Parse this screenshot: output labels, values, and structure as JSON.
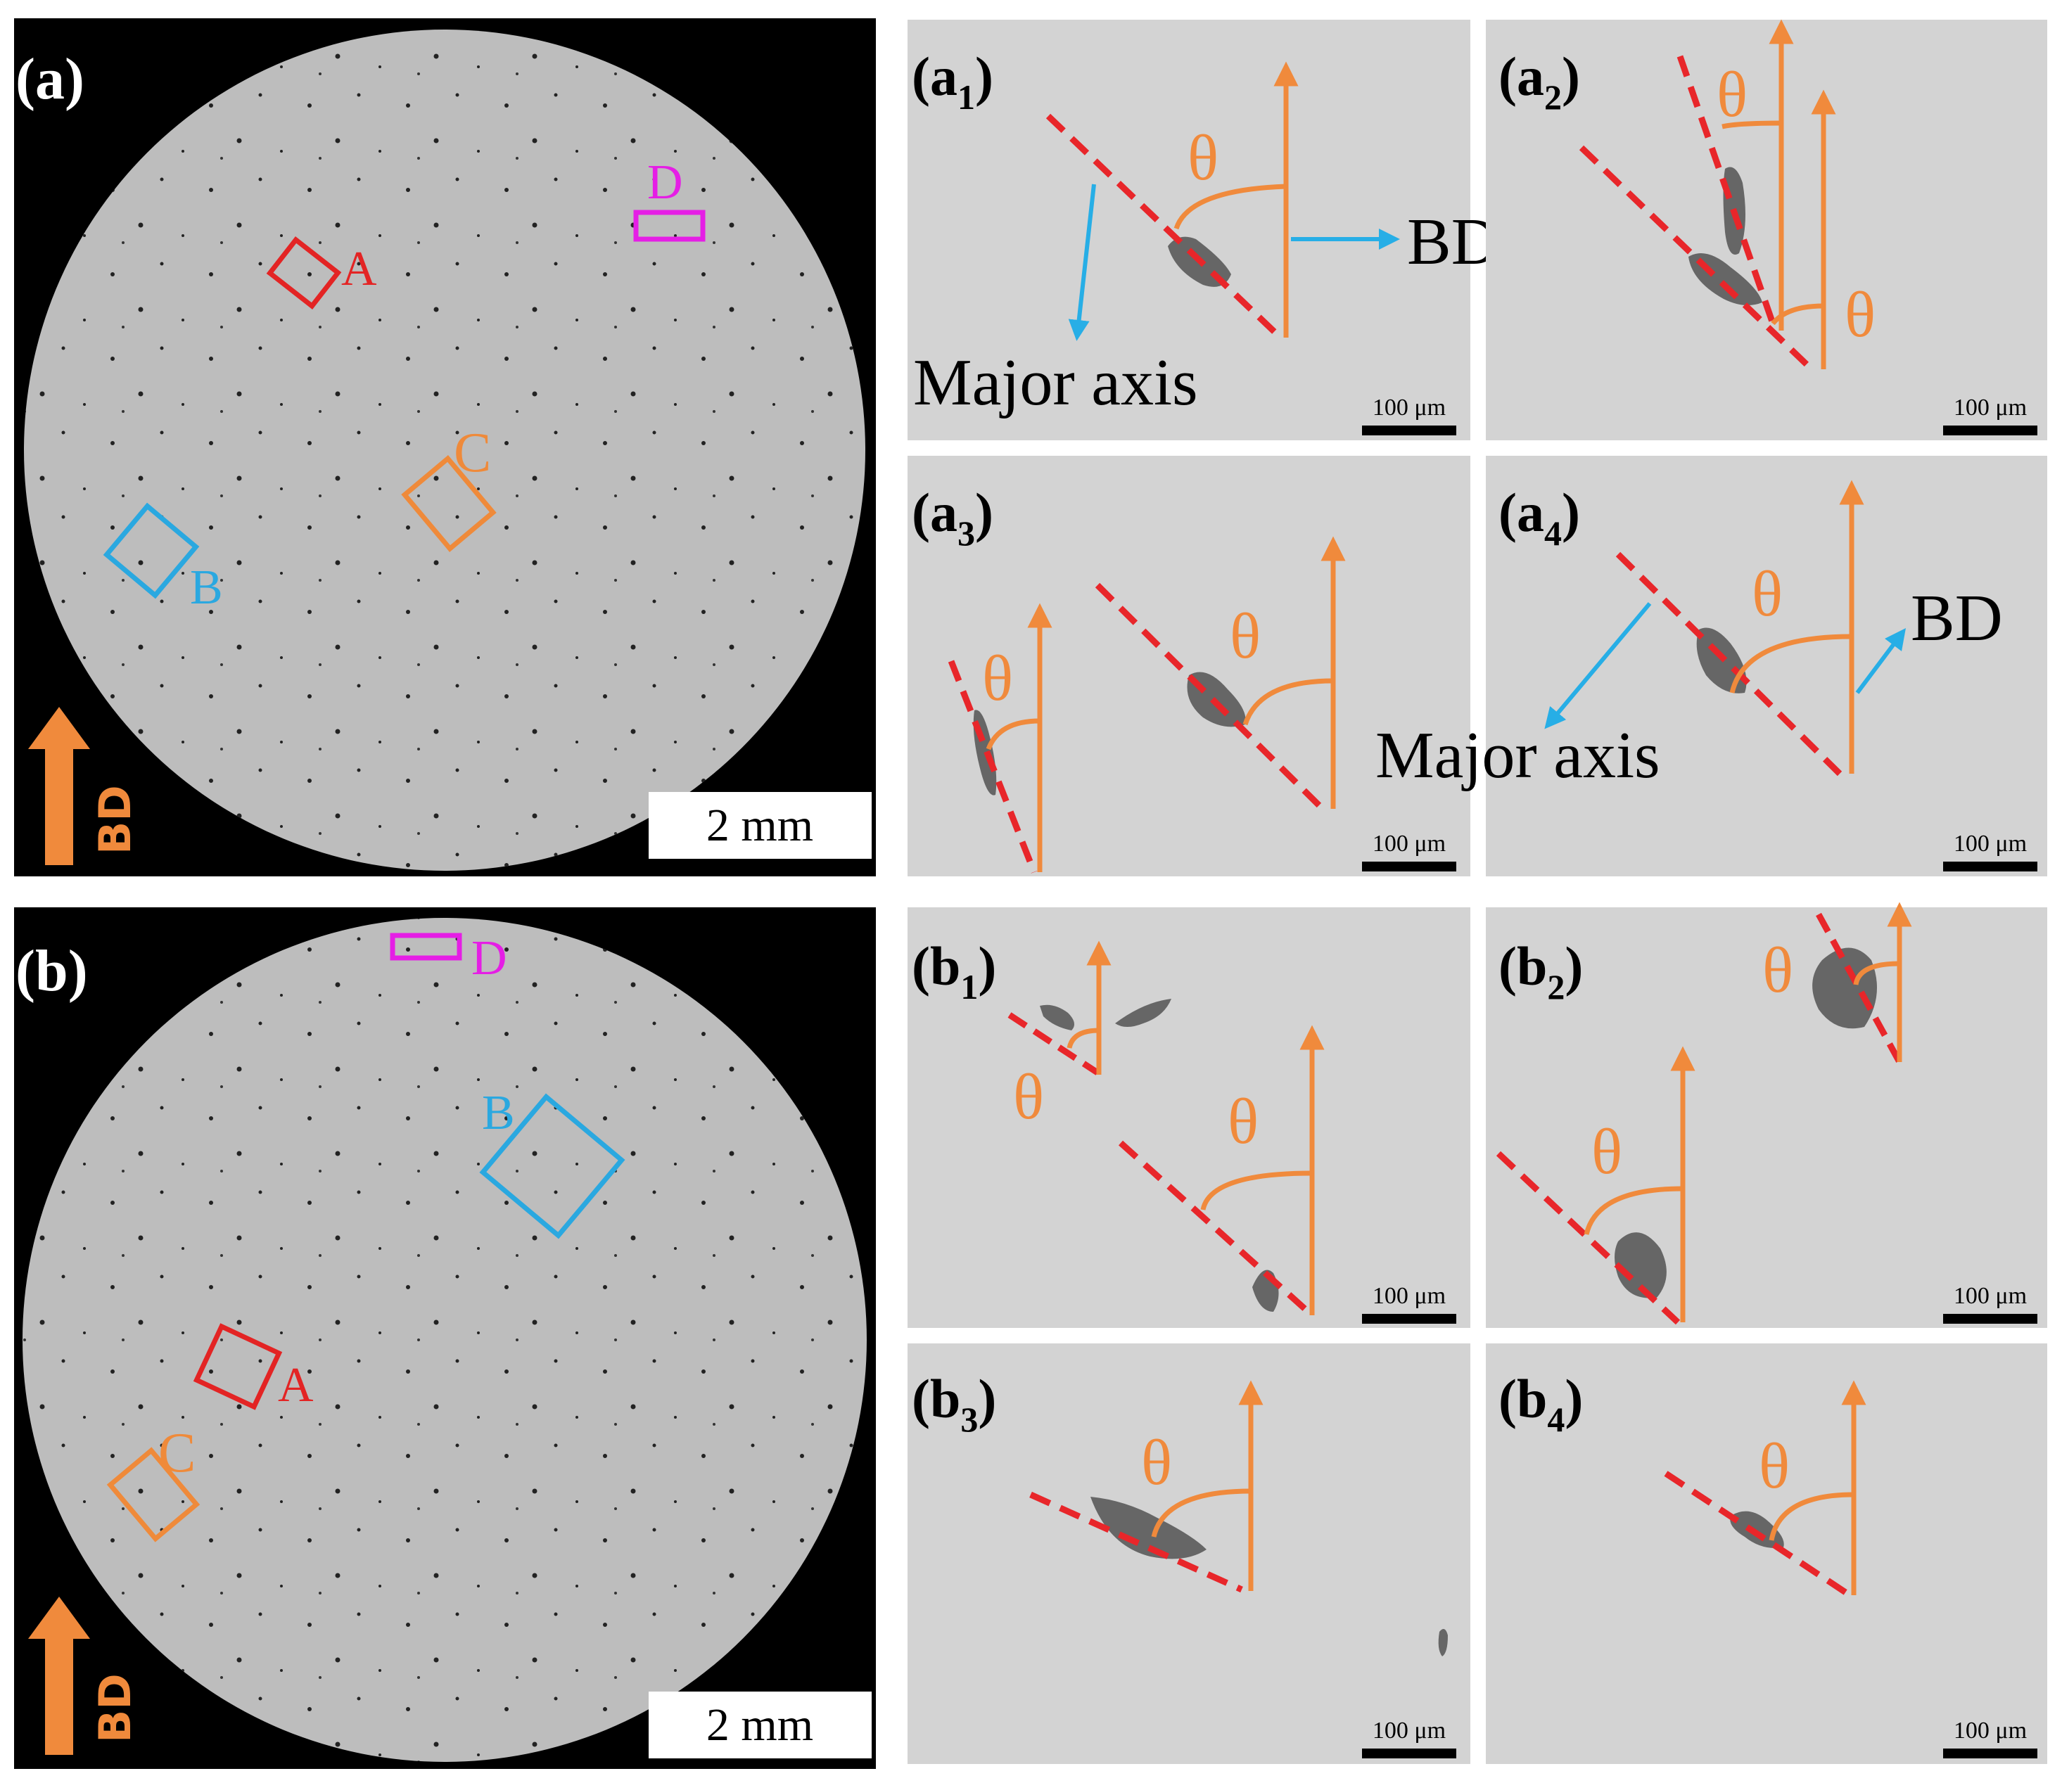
{
  "colors": {
    "panel_bg": "#d3d3d3",
    "disc_bg": "#b9b9b9",
    "frame_bg": "#000000",
    "orange": "#f08a3c",
    "red_dash": "#e8262a",
    "cyan": "#27aee6",
    "box_red": "#e32424",
    "box_blue": "#2aa8e0",
    "box_orange": "#ef8a3a",
    "box_magenta": "#e51ee5",
    "pore": "#666666"
  },
  "panel_a": {
    "label": "(a)",
    "scale_bar": "2 mm",
    "bd": "BD",
    "boxes": {
      "A": "A",
      "B": "B",
      "C": "C",
      "D": "D"
    }
  },
  "panel_b": {
    "label": "(b)",
    "scale_bar": "2 mm",
    "bd": "BD",
    "boxes": {
      "A": "A",
      "B": "B",
      "C": "C",
      "D": "D"
    }
  },
  "subpanels": {
    "a1": {
      "label_main": "(a",
      "label_sub": "1",
      "label_close": ")",
      "theta": "θ",
      "bd": "BD",
      "major_axis": "Major axis",
      "scale": "100 μm"
    },
    "a2": {
      "label_main": "(a",
      "label_sub": "2",
      "label_close": ")",
      "theta": "θ",
      "scale": "100 μm"
    },
    "a3": {
      "label_main": "(a",
      "label_sub": "3",
      "label_close": ")",
      "theta": "θ",
      "scale": "100 μm"
    },
    "a4": {
      "label_main": "(a",
      "label_sub": "4",
      "label_close": ")",
      "theta": "θ",
      "bd": "BD",
      "major_axis": "Major axis",
      "scale": "100 μm"
    },
    "b1": {
      "label_main": "(b",
      "label_sub": "1",
      "label_close": ")",
      "theta": "θ",
      "scale": "100 μm"
    },
    "b2": {
      "label_main": "(b",
      "label_sub": "2",
      "label_close": ")",
      "theta": "θ",
      "scale": "100 μm"
    },
    "b3": {
      "label_main": "(b",
      "label_sub": "3",
      "label_close": ")",
      "theta": "θ",
      "scale": "100 μm"
    },
    "b4": {
      "label_main": "(b",
      "label_sub": "4",
      "label_close": ")",
      "theta": "θ",
      "scale": "100 μm"
    }
  }
}
